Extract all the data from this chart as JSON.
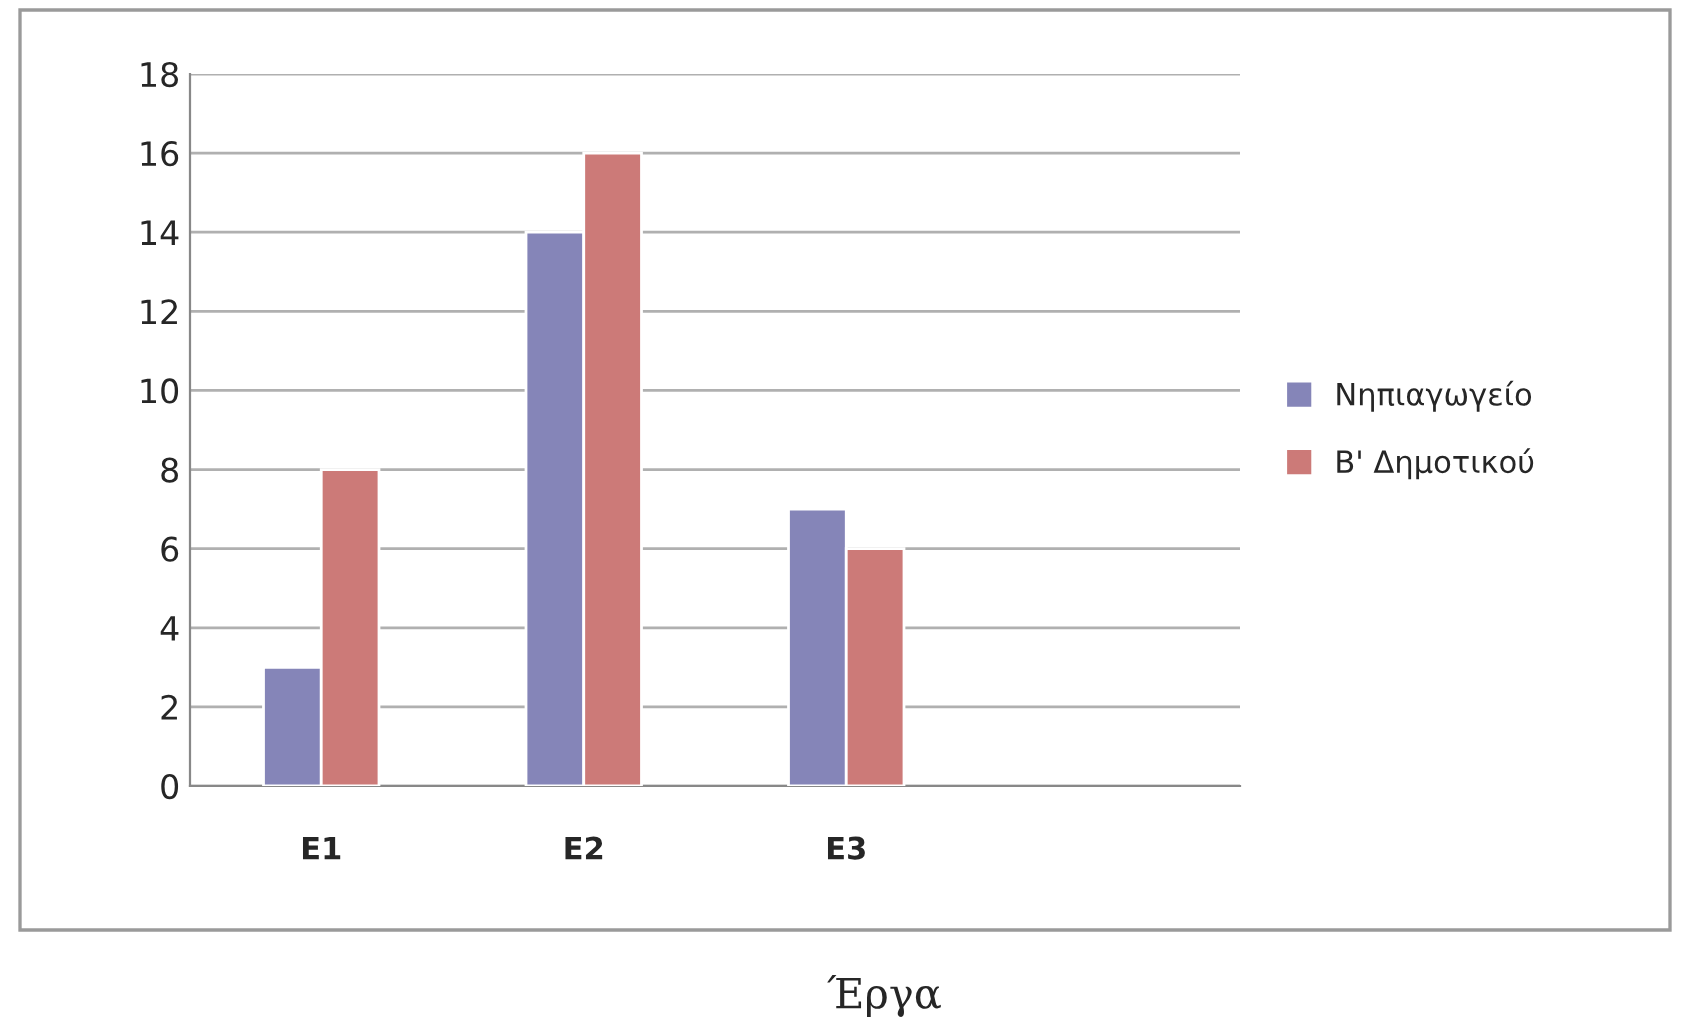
{
  "chart_data": {
    "type": "bar",
    "xlabel": "Έργα",
    "categories": [
      "E1",
      "E2",
      "E3",
      null
    ],
    "series": [
      {
        "name": "Νηπιαγωγείο",
        "color": "#8585b8",
        "values": [
          3,
          14,
          7,
          null
        ]
      },
      {
        "name": "B' Δημοτικού",
        "color": "#cc7a78",
        "values": [
          8,
          16,
          6,
          null
        ]
      }
    ],
    "ylim": [
      0,
      18
    ],
    "yticks": [
      0,
      2,
      4,
      6,
      8,
      10,
      12,
      14,
      16,
      18
    ],
    "grid": "y",
    "legend": "right"
  }
}
